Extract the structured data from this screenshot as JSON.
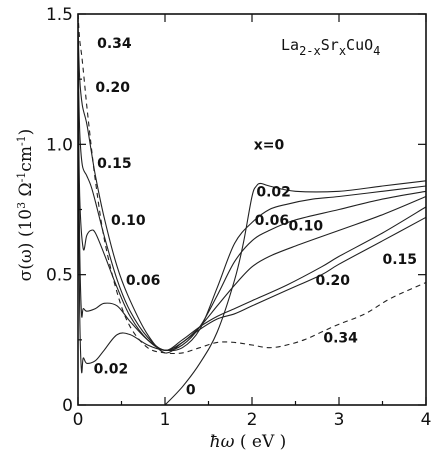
{
  "chart_data": {
    "type": "line",
    "title": {
      "main": "La",
      "sub1": "2-x",
      "mid": "Sr",
      "sub2": "x",
      "end": "CuO",
      "sub3": "4"
    },
    "xlabel": {
      "sym": "ħω",
      "unit": " ( eV )"
    },
    "ylabel": {
      "pre": "σ(ω)  (10",
      "exp3": "3",
      "mid": " Ω",
      "exp1": "-1",
      "mid2": "cm",
      "exp2": "-1",
      "end": ")"
    },
    "xlim": [
      0,
      4
    ],
    "ylim": [
      0,
      1.5
    ],
    "x_ticks": [
      0,
      1,
      2,
      3,
      4
    ],
    "x_tick_labels": [
      "0",
      "1",
      "2",
      "3",
      "4"
    ],
    "y_ticks": [
      0,
      0.5,
      1.0,
      1.5
    ],
    "y_tick_labels": [
      "0",
      "0.5",
      "1.0",
      "1.5"
    ],
    "series": [
      {
        "name": "x=0",
        "dashed": false,
        "points": [
          [
            1.0,
            0.0
          ],
          [
            1.2,
            0.07
          ],
          [
            1.4,
            0.16
          ],
          [
            1.6,
            0.28
          ],
          [
            1.8,
            0.48
          ],
          [
            1.9,
            0.62
          ],
          [
            2.0,
            0.8
          ],
          [
            2.05,
            0.84
          ],
          [
            2.1,
            0.85
          ],
          [
            2.2,
            0.84
          ],
          [
            2.5,
            0.82
          ],
          [
            3.0,
            0.82
          ],
          [
            3.5,
            0.84
          ],
          [
            4.0,
            0.86
          ]
        ]
      },
      {
        "name": "0.02",
        "dashed": false,
        "points": [
          [
            0.0,
            1.0
          ],
          [
            0.02,
            0.35
          ],
          [
            0.04,
            0.13
          ],
          [
            0.06,
            0.18
          ],
          [
            0.1,
            0.16
          ],
          [
            0.2,
            0.17
          ],
          [
            0.3,
            0.21
          ],
          [
            0.45,
            0.27
          ],
          [
            0.6,
            0.27
          ],
          [
            0.8,
            0.23
          ],
          [
            1.0,
            0.21
          ],
          [
            1.2,
            0.22
          ],
          [
            1.4,
            0.29
          ],
          [
            1.6,
            0.45
          ],
          [
            1.8,
            0.62
          ],
          [
            2.0,
            0.7
          ],
          [
            2.2,
            0.75
          ],
          [
            2.4,
            0.77
          ],
          [
            2.7,
            0.79
          ],
          [
            3.0,
            0.8
          ],
          [
            3.5,
            0.82
          ],
          [
            4.0,
            0.84
          ]
        ]
      },
      {
        "name": "0.06",
        "dashed": false,
        "points": [
          [
            0.0,
            1.2
          ],
          [
            0.02,
            0.6
          ],
          [
            0.04,
            0.35
          ],
          [
            0.06,
            0.37
          ],
          [
            0.1,
            0.36
          ],
          [
            0.2,
            0.37
          ],
          [
            0.3,
            0.39
          ],
          [
            0.45,
            0.38
          ],
          [
            0.6,
            0.32
          ],
          [
            0.8,
            0.25
          ],
          [
            1.0,
            0.21
          ],
          [
            1.2,
            0.23
          ],
          [
            1.4,
            0.3
          ],
          [
            1.6,
            0.42
          ],
          [
            1.8,
            0.55
          ],
          [
            2.0,
            0.63
          ],
          [
            2.2,
            0.67
          ],
          [
            2.5,
            0.71
          ],
          [
            3.0,
            0.75
          ],
          [
            3.5,
            0.79
          ],
          [
            4.0,
            0.82
          ]
        ]
      },
      {
        "name": "0.10",
        "dashed": false,
        "points": [
          [
            0.0,
            1.28
          ],
          [
            0.02,
            0.8
          ],
          [
            0.06,
            0.6
          ],
          [
            0.1,
            0.65
          ],
          [
            0.15,
            0.67
          ],
          [
            0.2,
            0.66
          ],
          [
            0.3,
            0.58
          ],
          [
            0.45,
            0.45
          ],
          [
            0.6,
            0.34
          ],
          [
            0.8,
            0.25
          ],
          [
            1.0,
            0.21
          ],
          [
            1.2,
            0.24
          ],
          [
            1.4,
            0.3
          ],
          [
            1.6,
            0.38
          ],
          [
            1.8,
            0.46
          ],
          [
            2.0,
            0.53
          ],
          [
            2.2,
            0.57
          ],
          [
            2.5,
            0.61
          ],
          [
            3.0,
            0.67
          ],
          [
            3.5,
            0.73
          ],
          [
            4.0,
            0.8
          ]
        ]
      },
      {
        "name": "0.15",
        "dashed": false,
        "points": [
          [
            0.0,
            1.35
          ],
          [
            0.02,
            1.05
          ],
          [
            0.05,
            0.92
          ],
          [
            0.1,
            0.88
          ],
          [
            0.15,
            0.84
          ],
          [
            0.2,
            0.78
          ],
          [
            0.3,
            0.65
          ],
          [
            0.45,
            0.48
          ],
          [
            0.6,
            0.36
          ],
          [
            0.8,
            0.26
          ],
          [
            1.0,
            0.21
          ],
          [
            1.2,
            0.25
          ],
          [
            1.4,
            0.3
          ],
          [
            1.6,
            0.34
          ],
          [
            1.8,
            0.37
          ],
          [
            2.0,
            0.4
          ],
          [
            2.4,
            0.46
          ],
          [
            2.8,
            0.53
          ],
          [
            3.0,
            0.57
          ],
          [
            3.5,
            0.66
          ],
          [
            4.0,
            0.76
          ]
        ]
      },
      {
        "name": "0.20",
        "dashed": false,
        "points": [
          [
            0.0,
            1.45
          ],
          [
            0.02,
            1.25
          ],
          [
            0.05,
            1.15
          ],
          [
            0.1,
            1.08
          ],
          [
            0.15,
            0.98
          ],
          [
            0.2,
            0.88
          ],
          [
            0.3,
            0.72
          ],
          [
            0.45,
            0.53
          ],
          [
            0.6,
            0.4
          ],
          [
            0.8,
            0.27
          ],
          [
            1.0,
            0.2
          ],
          [
            1.2,
            0.24
          ],
          [
            1.4,
            0.29
          ],
          [
            1.6,
            0.33
          ],
          [
            1.8,
            0.35
          ],
          [
            2.0,
            0.38
          ],
          [
            2.4,
            0.44
          ],
          [
            2.8,
            0.5
          ],
          [
            3.0,
            0.54
          ],
          [
            3.5,
            0.63
          ],
          [
            4.0,
            0.72
          ]
        ]
      },
      {
        "name": "0.34",
        "dashed": true,
        "points": [
          [
            0.0,
            1.5
          ],
          [
            0.02,
            1.4
          ],
          [
            0.05,
            1.32
          ],
          [
            0.1,
            1.15
          ],
          [
            0.15,
            1.0
          ],
          [
            0.2,
            0.86
          ],
          [
            0.3,
            0.64
          ],
          [
            0.45,
            0.43
          ],
          [
            0.6,
            0.3
          ],
          [
            0.8,
            0.22
          ],
          [
            1.0,
            0.2
          ],
          [
            1.2,
            0.2
          ],
          [
            1.4,
            0.22
          ],
          [
            1.6,
            0.24
          ],
          [
            1.8,
            0.24
          ],
          [
            2.0,
            0.23
          ],
          [
            2.2,
            0.22
          ],
          [
            2.4,
            0.23
          ],
          [
            2.6,
            0.25
          ],
          [
            2.8,
            0.28
          ],
          [
            3.0,
            0.31
          ],
          [
            3.3,
            0.35
          ],
          [
            3.6,
            0.41
          ],
          [
            4.0,
            0.47
          ]
        ]
      }
    ],
    "annotations": [
      {
        "text": "0.34",
        "x": 0.22,
        "y": 1.37
      },
      {
        "text": "0.20",
        "x": 0.2,
        "y": 1.2
      },
      {
        "text": "0.15",
        "x": 0.22,
        "y": 0.91
      },
      {
        "text": "0.10",
        "x": 0.38,
        "y": 0.69
      },
      {
        "text": "0.06",
        "x": 0.55,
        "y": 0.46
      },
      {
        "text": "0.02",
        "x": 0.18,
        "y": 0.12
      },
      {
        "text": "0",
        "x": 1.24,
        "y": 0.04
      },
      {
        "text": "x=0",
        "x": 2.02,
        "y": 0.98
      },
      {
        "text": "0.02",
        "x": 2.05,
        "y": 0.8
      },
      {
        "text": "0.06",
        "x": 2.03,
        "y": 0.69
      },
      {
        "text": "0.10",
        "x": 2.42,
        "y": 0.67
      },
      {
        "text": "0.15",
        "x": 3.5,
        "y": 0.54
      },
      {
        "text": "0.20",
        "x": 2.73,
        "y": 0.46
      },
      {
        "text": "0.34",
        "x": 2.82,
        "y": 0.24
      }
    ],
    "grid": false,
    "legend": "none"
  }
}
